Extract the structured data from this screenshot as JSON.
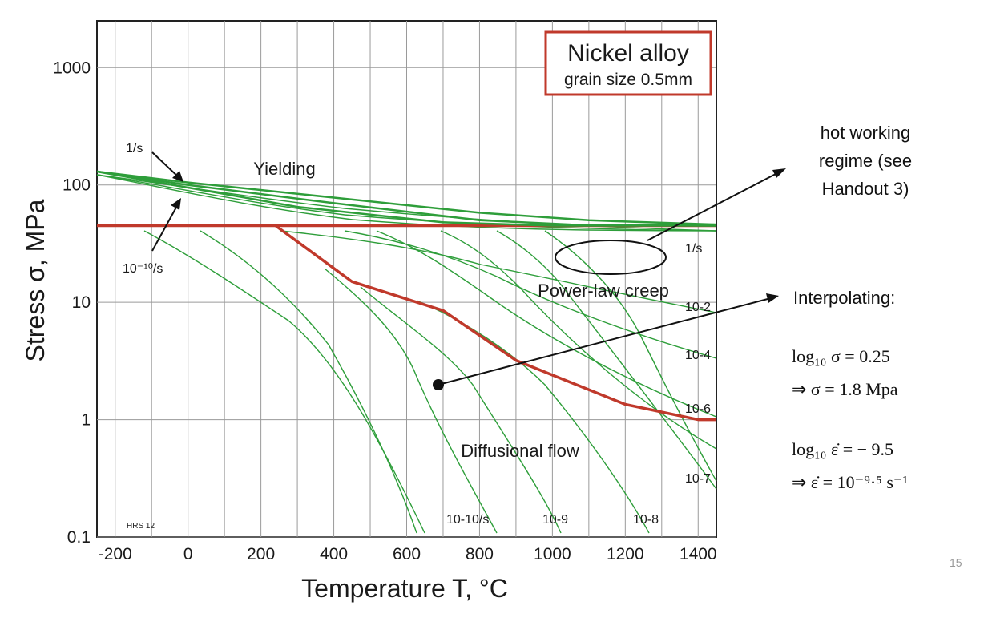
{
  "chart_data": {
    "type": "line",
    "title": "Nickel alloy",
    "subtitle": "grain size 0.5mm",
    "xlabel": "Temperature T, °C",
    "ylabel": "Stress σ, MPa",
    "x_ticks": [
      "-200",
      "0",
      "200",
      "400",
      "600",
      "800",
      "1000",
      "1200",
      "1400"
    ],
    "y_ticks": [
      "0.1",
      "1",
      "10",
      "100",
      "1000"
    ],
    "xlim": [
      -250,
      1450
    ],
    "ylim": [
      0.1,
      2500
    ],
    "y_scale": "log",
    "grid": true,
    "region_labels": [
      "Yielding",
      "Power-law creep",
      "Diffusional flow"
    ],
    "strain_rate_labels": [
      "1/s",
      "10-2",
      "10-4",
      "10-6",
      "10-7",
      "10-8",
      "10-9",
      "10-10/s"
    ],
    "credit": "HRS 12",
    "series": [
      {
        "color": "#c0392b",
        "x": [
          -250,
          240,
          450,
          700,
          900,
          1200,
          1400,
          1450
        ],
        "y": [
          45,
          45,
          15,
          8.5,
          3.2,
          1.35,
          1.0,
          1.0
        ]
      },
      {
        "color": "#c0392b",
        "x": [
          240,
          1450
        ],
        "y": [
          45,
          45
        ]
      },
      {
        "color": "#2e9e3a",
        "x": [
          -250,
          0,
          400,
          800,
          1100,
          1450
        ],
        "y": [
          130,
          105,
          78,
          58,
          50,
          46
        ]
      },
      {
        "color": "#2e9e3a",
        "x": [
          -250,
          0,
          400,
          800,
          1050,
          1450
        ],
        "y": [
          130,
          100,
          70,
          50,
          46,
          45
        ]
      },
      {
        "color": "#2e9e3a",
        "x": [
          -250,
          0,
          300,
          700,
          1000,
          1450
        ],
        "y": [
          130,
          95,
          65,
          48,
          45,
          45
        ]
      }
    ]
  },
  "annotations": {
    "rate_high": "1/s",
    "rate_low": "10⁻¹⁰/s",
    "hot_working": [
      "hot working",
      "regime (see",
      "Handout 3)"
    ],
    "interp_title": "Interpolating:",
    "log_sigma": "log₁₀ σ = 0.25",
    "sigma_result": "⇒ σ = 1.8 Mpa",
    "log_eps": "log₁₀ ε̇ = − 9.5",
    "eps_result": "⇒ ε̇ = 10⁻⁹·⁵ s⁻¹",
    "page_number": "15"
  },
  "colors": {
    "red": "#c0392b",
    "green": "#2e9e3a",
    "grid": "#9a9a9a",
    "frame": "#222222"
  }
}
